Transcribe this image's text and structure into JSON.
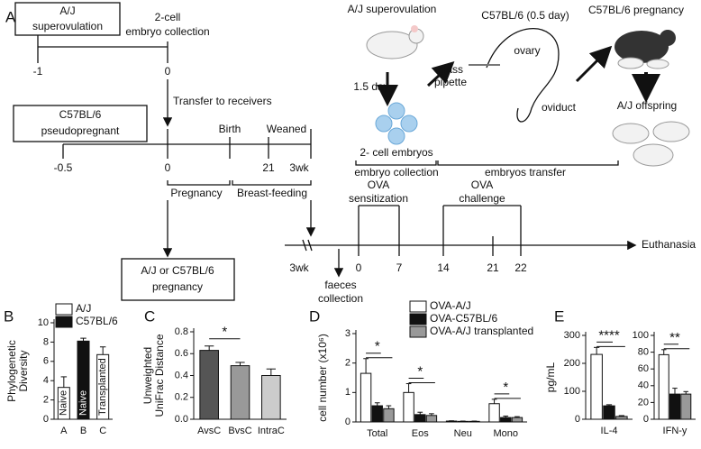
{
  "panel_a": {
    "texts": [
      "A",
      "A/J",
      "superovulation",
      "2-cell",
      "embryo collection",
      "-1",
      "0",
      "Transfer to receivers",
      "C57BL/6",
      "pseudopregnant",
      "Birth",
      "Weaned",
      "-0.5",
      "0",
      "21",
      "3wk",
      "Pregnancy",
      "Breast-feeding",
      "A/J or C57BL/6",
      "pregnancy",
      "OVA",
      "sensitization",
      "OVA",
      "challenge",
      "Euthanasia",
      "3wk",
      "0",
      "7",
      "14",
      "21",
      "22",
      "faeces",
      "collection",
      "A/J superovulation",
      "1.5 day",
      "2- cell embryos",
      "embryo collection",
      "C57BL/6 (0.5 day)",
      "ovary",
      "glass",
      "pipette",
      "oviduct",
      "embryos transfer",
      "C57BL/6 pregnancy",
      "A/J offspring"
    ]
  },
  "chart_data": [
    {
      "type": "bar",
      "label": "B",
      "ylabel": [
        "Phylogenetic",
        "Diversity"
      ],
      "categories": [
        "A",
        "B",
        "C"
      ],
      "values": [
        3.3,
        8.1,
        6.7
      ],
      "errors": [
        1.1,
        0.3,
        0.8
      ],
      "colors": [
        "#ffffff",
        "#111111",
        "#ffffff"
      ],
      "bar_labels": [
        "Naive",
        "Naive",
        "Transplanted"
      ],
      "legend": [
        {
          "name": "A/J",
          "color": "#ffffff"
        },
        {
          "name": "C57BL/6",
          "color": "#111111"
        }
      ],
      "ylim": [
        0,
        10
      ],
      "yticks": [
        0,
        2,
        4,
        6,
        8,
        10
      ]
    },
    {
      "type": "bar",
      "label": "C",
      "ylabel": [
        "Unweighted",
        "UniFrac Distance"
      ],
      "categories": [
        "AvsC",
        "BvsC",
        "IntraC"
      ],
      "values": [
        0.63,
        0.49,
        0.4
      ],
      "errors": [
        0.04,
        0.03,
        0.06
      ],
      "colors": [
        "#555555",
        "#999999",
        "#cccccc"
      ],
      "annotations": [
        "*"
      ],
      "ylim": [
        0,
        0.8
      ],
      "yticks": [
        {
          "value": 0,
          "label": "0.0"
        },
        {
          "value": 0.2,
          "label": "0.2"
        },
        {
          "value": 0.4,
          "label": "0.4"
        },
        {
          "value": 0.6,
          "label": "0.6"
        },
        {
          "value": 0.8,
          "label": "0.8"
        }
      ]
    },
    {
      "type": "bar",
      "label": "D",
      "ylabel": [
        "cell number (x10⁶)"
      ],
      "categories": [
        "Total",
        "Eos",
        "Neu",
        "Mono"
      ],
      "series": [
        {
          "name": "OVA-A/J",
          "color": "#ffffff",
          "values": [
            1.65,
            1.0,
            0.03,
            0.62
          ],
          "errors": [
            0.5,
            0.3,
            0.01,
            0.15
          ]
        },
        {
          "name": "OVA-C57BL/6",
          "color": "#111111",
          "values": [
            0.55,
            0.25,
            0.02,
            0.15
          ],
          "errors": [
            0.1,
            0.08,
            0.01,
            0.05
          ]
        },
        {
          "name": "OVA-A/J transplanted",
          "color": "#999999",
          "values": [
            0.45,
            0.22,
            0.02,
            0.15
          ],
          "errors": [
            0.1,
            0.06,
            0.01,
            0.03
          ]
        }
      ],
      "annotations": [
        "*",
        "*",
        "*"
      ],
      "ylim": [
        0,
        3
      ],
      "yticks": [
        0,
        1,
        2,
        3
      ]
    },
    {
      "type": "bar",
      "label": "E",
      "ylabel": [
        "pg/mL"
      ],
      "categories": [
        "IL-4"
      ],
      "series": [
        {
          "color": "#ffffff",
          "values": [
            232
          ],
          "errors": [
            25
          ]
        },
        {
          "color": "#111111",
          "values": [
            48
          ],
          "errors": [
            4
          ]
        },
        {
          "color": "#999999",
          "values": [
            10
          ],
          "errors": [
            3
          ]
        }
      ],
      "annotations": [
        "****"
      ],
      "ylim": [
        0,
        300
      ],
      "yticks": [
        0,
        100,
        200,
        300
      ]
    },
    {
      "type": "bar",
      "categories": [
        "IFN-y"
      ],
      "series": [
        {
          "color": "#ffffff",
          "values": [
            77
          ],
          "errors": [
            6
          ]
        },
        {
          "color": "#111111",
          "values": [
            30
          ],
          "errors": [
            7
          ]
        },
        {
          "color": "#999999",
          "values": [
            30
          ],
          "errors": [
            3
          ]
        }
      ],
      "annotations": [
        "**"
      ],
      "ylim": [
        0,
        100
      ],
      "yticks": [
        0,
        20,
        40,
        60,
        80,
        100
      ]
    }
  ]
}
